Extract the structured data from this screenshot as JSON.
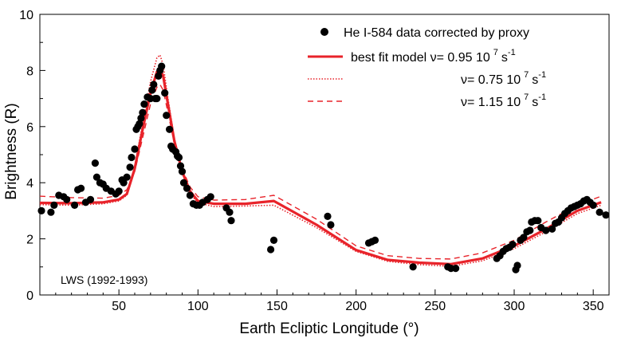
{
  "chart_data": {
    "type": "scatter",
    "title": "",
    "xlabel": "Earth Ecliptic Longitude (°)",
    "ylabel": "Brightness (R)",
    "xlim": [
      0,
      360
    ],
    "ylim": [
      0,
      10
    ],
    "x_ticks": [
      50,
      100,
      150,
      200,
      250,
      300,
      350
    ],
    "y_ticks": [
      0,
      2,
      4,
      6,
      8,
      10
    ],
    "grid": false,
    "legend_position": "top-right",
    "annotation": "LWS (1992-1993)",
    "legend": [
      {
        "label": "He I-584 data corrected by proxy",
        "sup": ""
      },
      {
        "label": "best fit model ν= 0.95 10",
        "sup": "7",
        "unit": "s",
        "unit_sup": "-1"
      },
      {
        "label": "ν= 0.75 10",
        "sup": "7",
        "unit": "s",
        "unit_sup": "-1"
      },
      {
        "label": "ν= 1.15 10",
        "sup": "7",
        "unit": "s",
        "unit_sup": "-1"
      }
    ],
    "colors": {
      "data": "#000000",
      "model": "#e8232a"
    },
    "series": [
      {
        "name": "He I-584 data corrected by proxy",
        "style": "markers",
        "points": [
          [
            1,
            3.0
          ],
          [
            7,
            2.95
          ],
          [
            9,
            3.2
          ],
          [
            12,
            3.55
          ],
          [
            15,
            3.5
          ],
          [
            17,
            3.4
          ],
          [
            22,
            3.2
          ],
          [
            24,
            3.75
          ],
          [
            26,
            3.8
          ],
          [
            29,
            3.3
          ],
          [
            32,
            3.4
          ],
          [
            35,
            4.7
          ],
          [
            36,
            4.2
          ],
          [
            38,
            4.0
          ],
          [
            40,
            3.95
          ],
          [
            42,
            3.8
          ],
          [
            45,
            3.7
          ],
          [
            48,
            3.6
          ],
          [
            50,
            3.7
          ],
          [
            52,
            4.1
          ],
          [
            53,
            4.0
          ],
          [
            55,
            4.2
          ],
          [
            57,
            4.55
          ],
          [
            58,
            4.9
          ],
          [
            60,
            5.2
          ],
          [
            61,
            5.9
          ],
          [
            62,
            6.0
          ],
          [
            63,
            6.1
          ],
          [
            64,
            6.3
          ],
          [
            65,
            6.5
          ],
          [
            66,
            6.8
          ],
          [
            68,
            7.05
          ],
          [
            70,
            7.0
          ],
          [
            71,
            7.3
          ],
          [
            72,
            7.5
          ],
          [
            73,
            7.0
          ],
          [
            74,
            7.0
          ],
          [
            75,
            7.8
          ],
          [
            76,
            8.0
          ],
          [
            77,
            8.15
          ],
          [
            79,
            7.2
          ],
          [
            80,
            6.4
          ],
          [
            82,
            5.9
          ],
          [
            83,
            5.3
          ],
          [
            84,
            5.2
          ],
          [
            86,
            5.1
          ],
          [
            87,
            4.95
          ],
          [
            88,
            4.9
          ],
          [
            89,
            4.6
          ],
          [
            90,
            4.4
          ],
          [
            91,
            4.0
          ],
          [
            93,
            3.8
          ],
          [
            95,
            3.55
          ],
          [
            97,
            3.25
          ],
          [
            99,
            3.2
          ],
          [
            101,
            3.2
          ],
          [
            103,
            3.3
          ],
          [
            106,
            3.4
          ],
          [
            108,
            3.5
          ],
          [
            118,
            3.1
          ],
          [
            120,
            2.95
          ],
          [
            121,
            2.65
          ],
          [
            146,
            1.62
          ],
          [
            148,
            1.95
          ],
          [
            182,
            2.8
          ],
          [
            184,
            2.5
          ],
          [
            208,
            1.85
          ],
          [
            210,
            1.9
          ],
          [
            212,
            1.95
          ],
          [
            236,
            1.0
          ],
          [
            258,
            1.0
          ],
          [
            260,
            0.95
          ],
          [
            263,
            0.95
          ],
          [
            289,
            1.3
          ],
          [
            291,
            1.4
          ],
          [
            293,
            1.55
          ],
          [
            295,
            1.65
          ],
          [
            297,
            1.7
          ],
          [
            299,
            1.8
          ],
          [
            301,
            0.9
          ],
          [
            302,
            1.05
          ],
          [
            304,
            1.95
          ],
          [
            306,
            2.05
          ],
          [
            308,
            2.25
          ],
          [
            310,
            2.3
          ],
          [
            311,
            2.6
          ],
          [
            313,
            2.65
          ],
          [
            315,
            2.65
          ],
          [
            317,
            2.4
          ],
          [
            320,
            2.3
          ],
          [
            324,
            2.35
          ],
          [
            326,
            2.55
          ],
          [
            328,
            2.6
          ],
          [
            330,
            2.75
          ],
          [
            332,
            2.9
          ],
          [
            334,
            3.0
          ],
          [
            336,
            3.1
          ],
          [
            338,
            3.15
          ],
          [
            340,
            3.2
          ],
          [
            342,
            3.25
          ],
          [
            344,
            3.35
          ],
          [
            346,
            3.4
          ],
          [
            348,
            3.3
          ],
          [
            350,
            3.2
          ],
          [
            354,
            2.95
          ],
          [
            358,
            2.85
          ]
        ]
      },
      {
        "name": "best fit model ν= 0.95 10^7 s^-1",
        "style": "solid-thick",
        "points": [
          [
            0,
            3.28
          ],
          [
            20,
            3.27
          ],
          [
            40,
            3.3
          ],
          [
            50,
            3.4
          ],
          [
            55,
            3.6
          ],
          [
            60,
            4.5
          ],
          [
            65,
            5.9
          ],
          [
            70,
            7.2
          ],
          [
            74,
            7.95
          ],
          [
            76,
            8.05
          ],
          [
            78,
            7.8
          ],
          [
            81,
            6.8
          ],
          [
            85,
            5.5
          ],
          [
            90,
            4.4
          ],
          [
            95,
            3.7
          ],
          [
            100,
            3.35
          ],
          [
            110,
            3.25
          ],
          [
            130,
            3.25
          ],
          [
            148,
            3.35
          ],
          [
            175,
            2.5
          ],
          [
            200,
            1.6
          ],
          [
            220,
            1.25
          ],
          [
            240,
            1.15
          ],
          [
            260,
            1.1
          ],
          [
            280,
            1.3
          ],
          [
            300,
            1.75
          ],
          [
            320,
            2.35
          ],
          [
            340,
            3.0
          ],
          [
            355,
            3.3
          ]
        ]
      },
      {
        "name": "ν= 0.75 10^7 s^-1",
        "style": "dotted",
        "points": [
          [
            0,
            3.22
          ],
          [
            20,
            3.2
          ],
          [
            40,
            3.25
          ],
          [
            50,
            3.35
          ],
          [
            55,
            3.55
          ],
          [
            60,
            4.6
          ],
          [
            65,
            6.1
          ],
          [
            70,
            7.6
          ],
          [
            74,
            8.45
          ],
          [
            76,
            8.55
          ],
          [
            78,
            8.2
          ],
          [
            81,
            7.0
          ],
          [
            85,
            5.6
          ],
          [
            90,
            4.35
          ],
          [
            95,
            3.6
          ],
          [
            100,
            3.28
          ],
          [
            110,
            3.15
          ],
          [
            130,
            3.17
          ],
          [
            148,
            3.2
          ],
          [
            175,
            2.4
          ],
          [
            200,
            1.55
          ],
          [
            220,
            1.2
          ],
          [
            240,
            1.08
          ],
          [
            260,
            1.02
          ],
          [
            280,
            1.22
          ],
          [
            300,
            1.65
          ],
          [
            320,
            2.25
          ],
          [
            340,
            2.9
          ],
          [
            355,
            3.2
          ]
        ]
      },
      {
        "name": "ν= 1.15 10^7 s^-1",
        "style": "dashed",
        "points": [
          [
            0,
            3.52
          ],
          [
            20,
            3.47
          ],
          [
            40,
            3.45
          ],
          [
            50,
            3.55
          ],
          [
            55,
            3.75
          ],
          [
            60,
            4.4
          ],
          [
            65,
            5.6
          ],
          [
            70,
            6.8
          ],
          [
            74,
            7.4
          ],
          [
            76,
            7.5
          ],
          [
            78,
            7.3
          ],
          [
            81,
            6.5
          ],
          [
            85,
            5.4
          ],
          [
            90,
            4.5
          ],
          [
            95,
            3.85
          ],
          [
            100,
            3.5
          ],
          [
            110,
            3.38
          ],
          [
            130,
            3.4
          ],
          [
            148,
            3.55
          ],
          [
            175,
            2.7
          ],
          [
            200,
            1.75
          ],
          [
            220,
            1.4
          ],
          [
            240,
            1.3
          ],
          [
            260,
            1.28
          ],
          [
            280,
            1.5
          ],
          [
            300,
            1.95
          ],
          [
            320,
            2.6
          ],
          [
            340,
            3.2
          ],
          [
            355,
            3.52
          ]
        ]
      }
    ]
  }
}
